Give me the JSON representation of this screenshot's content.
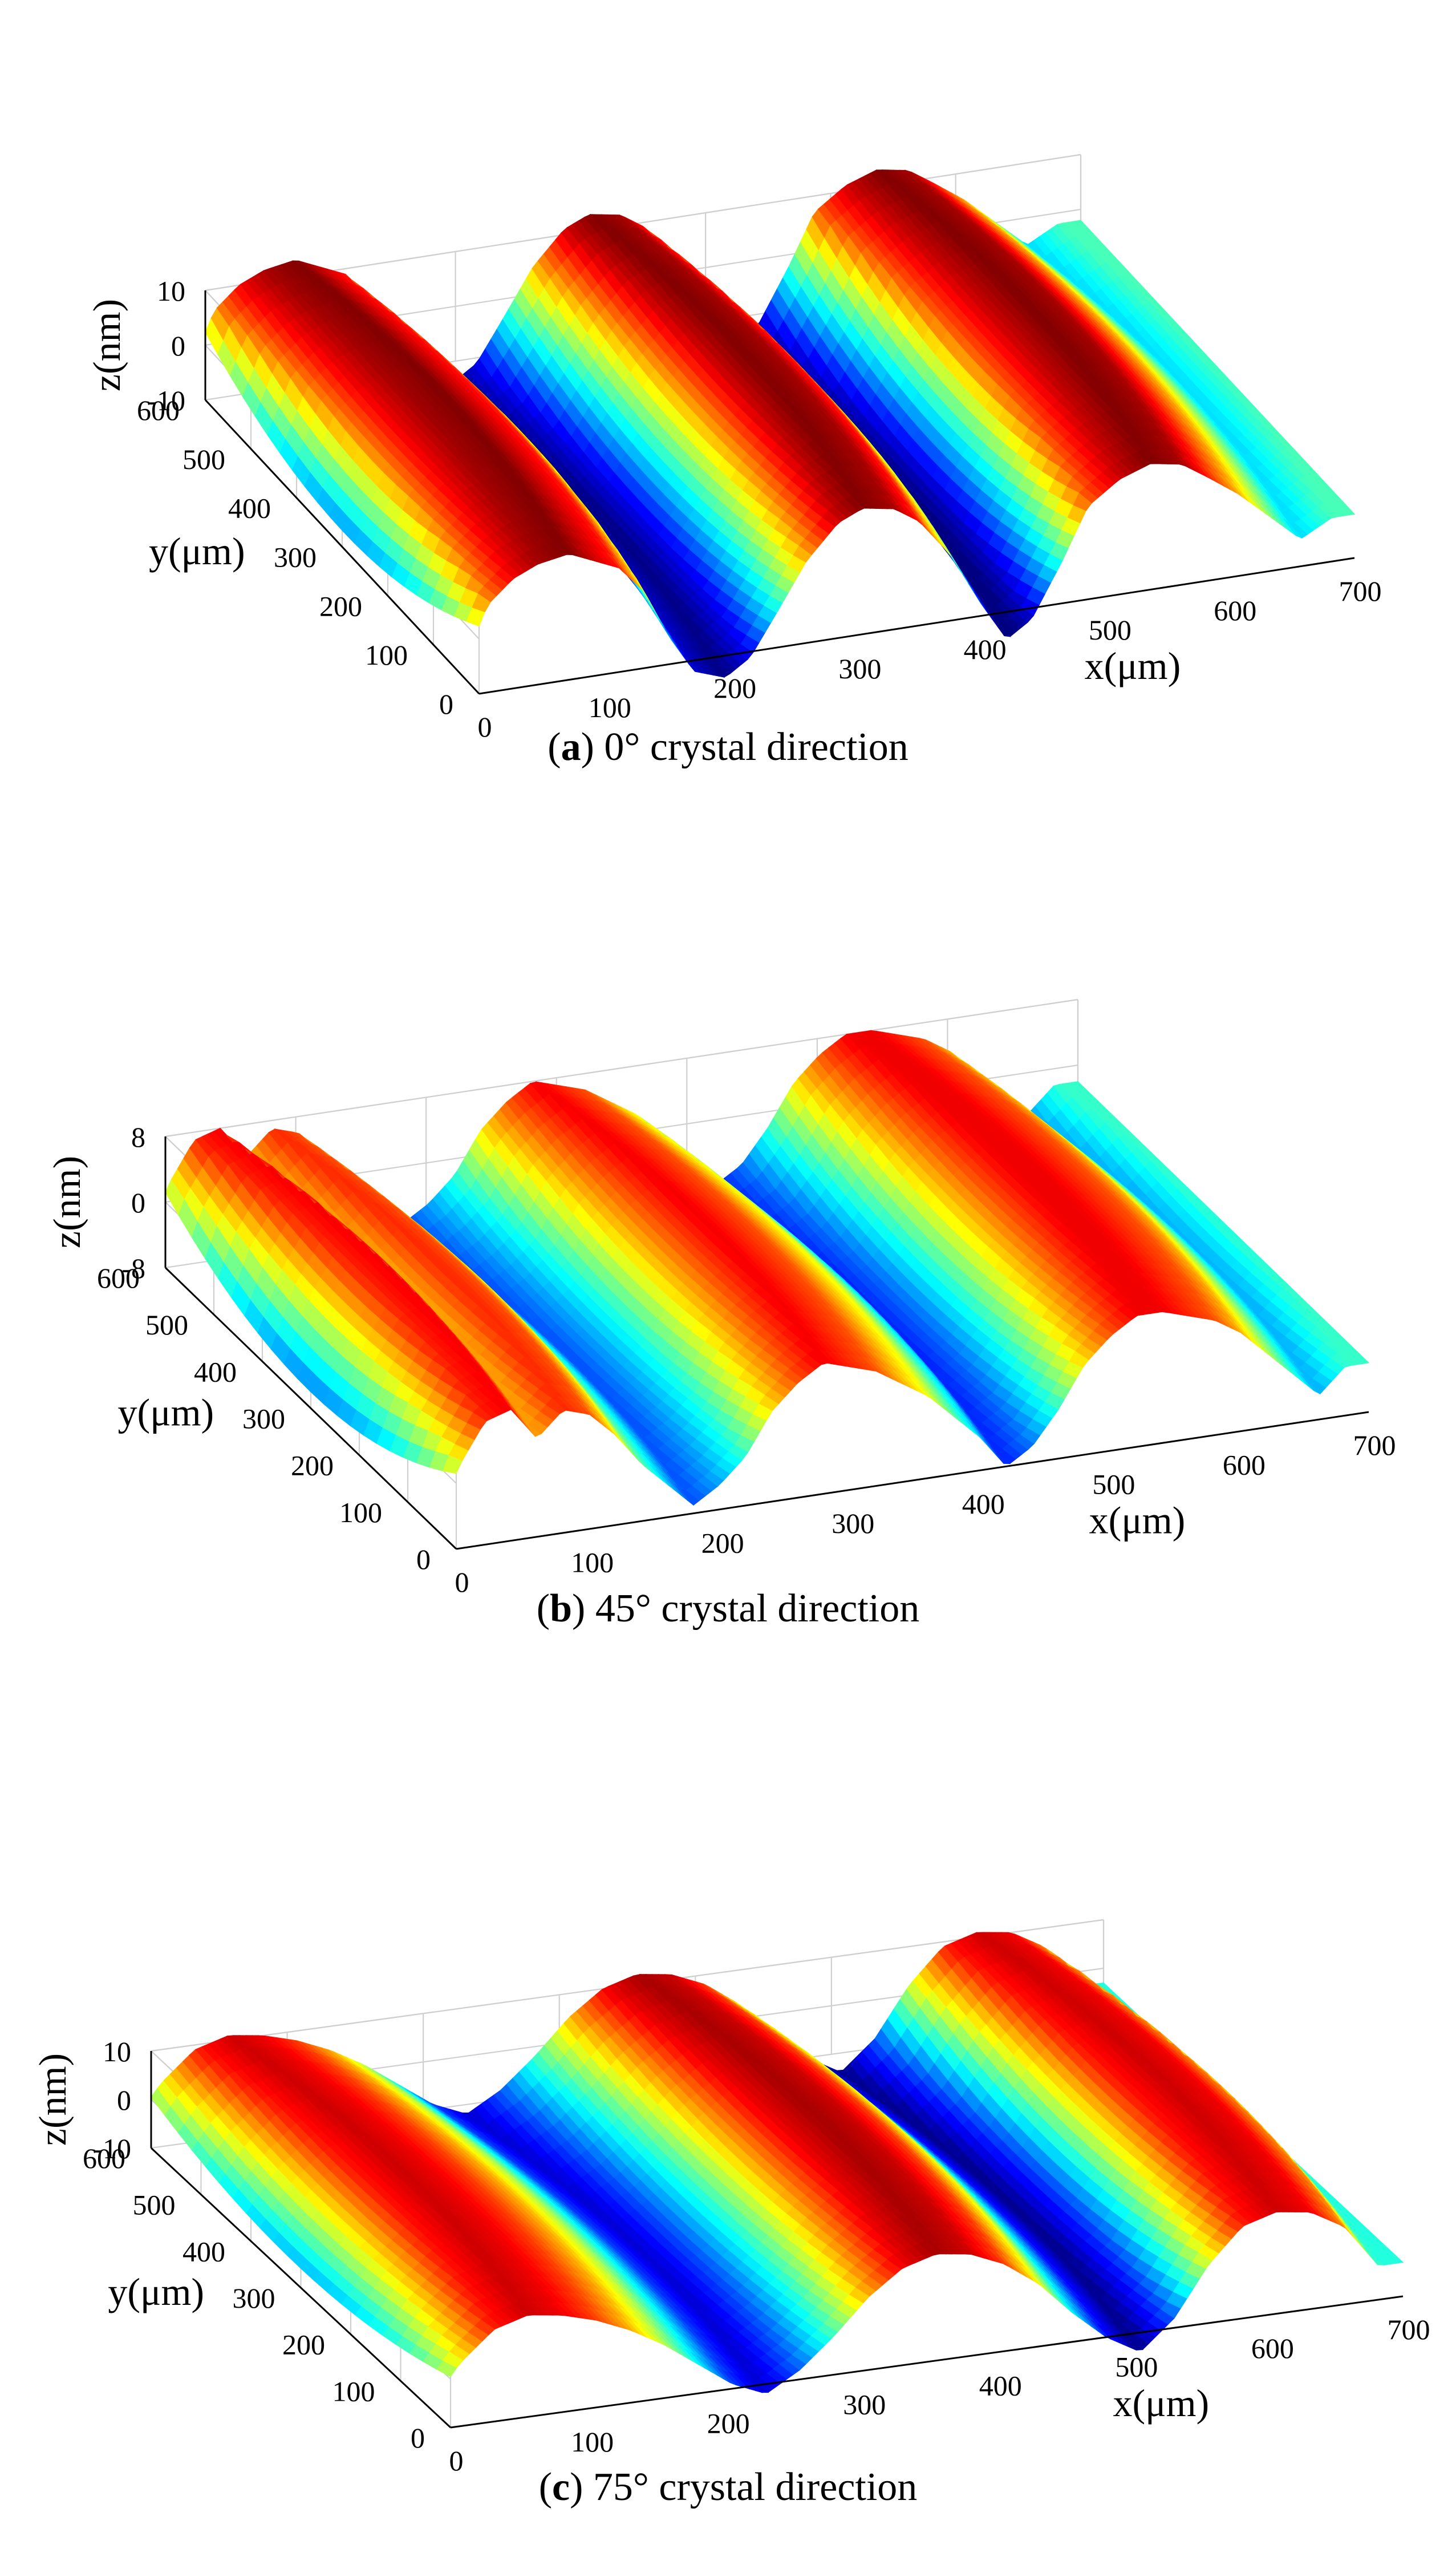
{
  "chart_data": [
    {
      "type": "surface",
      "panel_letter": "a",
      "caption": "0° crystal direction",
      "xlabel": "x(μm)",
      "ylabel": "y(μm)",
      "zlabel": "z(nm)",
      "x_ticks": [
        "0",
        "100",
        "200",
        "300",
        "400",
        "500",
        "600",
        "700"
      ],
      "y_ticks": [
        "0",
        "100",
        "200",
        "300",
        "400",
        "500",
        "600"
      ],
      "z_ticks": [
        "-10",
        "0",
        "10"
      ],
      "xlim": [
        0,
        700
      ],
      "ylim": [
        0,
        600
      ],
      "zlim": [
        -10,
        10
      ],
      "profile": {
        "x": [
          0,
          25,
          45,
          65,
          90,
          110,
          130,
          150,
          170,
          190,
          215,
          235,
          255,
          280,
          305,
          325,
          350,
          370,
          395,
          420,
          440,
          460,
          485,
          505,
          530,
          555,
          580,
          600,
          625,
          650,
          675,
          700
        ],
        "z": [
          -7,
          6,
          10,
          12,
          13,
          11,
          9,
          4,
          -5,
          -12,
          -14,
          -11,
          -4,
          5,
          11,
          13,
          12,
          9,
          2,
          -8,
          -15,
          -12,
          -2,
          7,
          11,
          13,
          12,
          9,
          5,
          0,
          -5,
          -2
        ]
      }
    },
    {
      "type": "surface",
      "panel_letter": "b",
      "caption": "45° crystal direction",
      "xlabel": "x(μm)",
      "ylabel": "y(μm)",
      "zlabel": "z(nm)",
      "x_ticks": [
        "0",
        "100",
        "200",
        "300",
        "400",
        "500",
        "600",
        "700"
      ],
      "y_ticks": [
        "0",
        "100",
        "200",
        "300",
        "400",
        "500",
        "600"
      ],
      "z_ticks": [
        "-8",
        "0",
        "8"
      ],
      "xlim": [
        0,
        700
      ],
      "ylim": [
        0,
        600
      ],
      "zlim": [
        -8,
        8
      ],
      "profile": {
        "x": [
          0,
          20,
          40,
          60,
          80,
          100,
          120,
          140,
          160,
          180,
          200,
          220,
          240,
          260,
          280,
          300,
          320,
          340,
          360,
          380,
          400,
          420,
          440,
          460,
          480,
          500,
          520,
          540,
          560,
          580,
          600,
          620,
          640,
          660,
          680,
          700
        ],
        "z": [
          -6,
          2,
          7,
          8,
          4,
          7,
          6,
          3,
          -1,
          -4,
          -7,
          -5,
          -2,
          3,
          6,
          8,
          7,
          6,
          4,
          2,
          -1,
          -4,
          -8,
          -6,
          -2,
          3,
          6,
          8,
          8,
          7,
          6,
          4,
          1,
          -2,
          -5,
          -2
        ]
      }
    },
    {
      "type": "surface",
      "panel_letter": "c",
      "caption": "75° crystal direction",
      "xlabel": "x(μm)",
      "ylabel": "y(μm)",
      "zlabel": "z(nm)",
      "x_ticks": [
        "0",
        "100",
        "200",
        "300",
        "400",
        "500",
        "600",
        "700"
      ],
      "y_ticks": [
        "0",
        "100",
        "200",
        "300",
        "400",
        "500",
        "600"
      ],
      "z_ticks": [
        "-10",
        "0",
        "10"
      ],
      "xlim": [
        0,
        700
      ],
      "ylim": [
        0,
        600
      ],
      "zlim": [
        -10,
        10
      ],
      "profile": {
        "x": [
          0,
          25,
          50,
          75,
          100,
          125,
          150,
          175,
          200,
          225,
          250,
          275,
          300,
          325,
          350,
          375,
          400,
          425,
          450,
          475,
          500,
          525,
          550,
          575,
          600,
          625,
          650,
          675,
          700
        ],
        "z": [
          -6,
          3,
          9,
          11,
          10,
          8,
          5,
          1,
          -4,
          -9,
          -12,
          -8,
          -2,
          5,
          10,
          12,
          11,
          8,
          3,
          -4,
          -10,
          -14,
          -8,
          2,
          9,
          11,
          10,
          6,
          -3
        ]
      }
    }
  ]
}
